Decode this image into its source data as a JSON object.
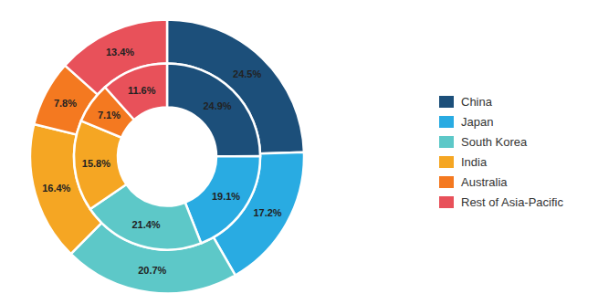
{
  "chart_data": {
    "type": "pie",
    "categories": [
      "China",
      "Japan",
      "South Korea",
      "India",
      "Australia",
      "Rest of Asia-Pacific"
    ],
    "colors": [
      "#1c4f7a",
      "#29abe2",
      "#5dc8c8",
      "#f5a623",
      "#f47920",
      "#e8515a"
    ],
    "series": [
      {
        "values": [
          24.5,
          17.2,
          20.7,
          16.4,
          7.8,
          13.4
        ],
        "value_labels": [
          "24.5%",
          "17.2%",
          "20.7%",
          "16.4%",
          "7.8%",
          "13.4%"
        ]
      },
      {
        "values": [
          24.9,
          19.1,
          21.4,
          15.8,
          7.1,
          11.6
        ],
        "value_labels": [
          "24.9%",
          "19.1%",
          "21.4%",
          "15.8%",
          "7.1%",
          "11.6%"
        ]
      }
    ],
    "data_labels": true,
    "legend": "right"
  }
}
